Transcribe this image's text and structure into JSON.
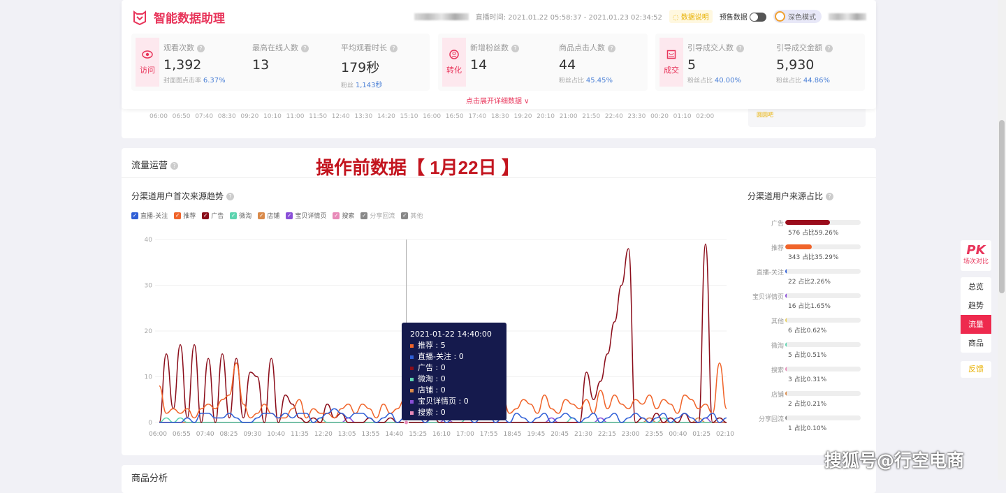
{
  "header": {
    "app_title": "智能数据助理",
    "live_time": "直播时间: 2021.01.22 05:58:37 - 2021.01.23 02:34:52",
    "data_note": "数据说明",
    "presale_label": "预售数据",
    "dark_mode_label": "深色模式",
    "expand_label": "点击展开详细数据 ∨"
  },
  "groups": [
    {
      "label": "访问",
      "icon": "eye-icon",
      "metrics": [
        {
          "label": "观看次数",
          "value": "1,392",
          "sub_label": "封面图点击率",
          "sub_value": "6.37%"
        },
        {
          "label": "最高在线人数",
          "value": "13",
          "sub_label": "",
          "sub_value": ""
        },
        {
          "label": "平均观看时长",
          "value": "179秒",
          "sub_label": "粉丝",
          "sub_value": "1,143秒"
        }
      ]
    },
    {
      "label": "转化",
      "icon": "user-icon",
      "metrics": [
        {
          "label": "新增粉丝数",
          "value": "14",
          "sub_label": "",
          "sub_value": ""
        },
        {
          "label": "商品点击人数",
          "value": "44",
          "sub_label": "粉丝占比",
          "sub_value": "45.45%"
        }
      ]
    },
    {
      "label": "成交",
      "icon": "bag-icon",
      "metrics": [
        {
          "label": "引导成交人数",
          "value": "5",
          "sub_label": "粉丝占比",
          "sub_value": "40.00%"
        },
        {
          "label": "引导成交金额",
          "value": "5,930",
          "sub_label": "粉丝占比",
          "sub_value": "44.86%"
        }
      ]
    }
  ],
  "prev_axis": [
    "06:00",
    "06:50",
    "07:40",
    "08:30",
    "09:20",
    "10:10",
    "11:00",
    "11:50",
    "12:40",
    "13:30",
    "14:20",
    "15:10",
    "16:00",
    "16:50",
    "17:40",
    "18:30",
    "19:20",
    "20:10",
    "21:00",
    "21:50",
    "22:40",
    "23:30",
    "00:20",
    "01:10",
    "02:00"
  ],
  "prev_box_text": "圆圆吧",
  "traffic": {
    "title": "流量运营",
    "banner": "操作前数据【 1月22日 】",
    "chart_title": "分渠道用户首次来源趋势",
    "share_title": "分渠道用户来源占比"
  },
  "chart_data": {
    "type": "line",
    "ylim": [
      0,
      40
    ],
    "yticks": [
      0,
      10,
      20,
      30,
      40
    ],
    "grid": true,
    "legend_placement": "top-left",
    "x_start": "06:00",
    "x_step_minutes": 15,
    "xticks": [
      "06:00",
      "06:55",
      "07:40",
      "08:25",
      "09:30",
      "10:40",
      "11:35",
      "12:20",
      "13:05",
      "13:55",
      "14:40",
      "15:25",
      "16:10",
      "17:00",
      "17:55",
      "18:45",
      "19:45",
      "20:45",
      "21:30",
      "22:15",
      "23:00",
      "23:55",
      "00:40",
      "01:25",
      "02:10"
    ],
    "series": [
      {
        "name": "直播-关注",
        "color": "#2f5fd6",
        "values": [
          0,
          0,
          0,
          0,
          1,
          0,
          2,
          2,
          1,
          1,
          2,
          1,
          0,
          0,
          1,
          2,
          2,
          1,
          2,
          1,
          2,
          2,
          0,
          1,
          2,
          3,
          2,
          1,
          2,
          2,
          1,
          0,
          1,
          2,
          0,
          1,
          2,
          1,
          0,
          1,
          2,
          0,
          1,
          2,
          1,
          0,
          1,
          2,
          0,
          1,
          0,
          2,
          1,
          0,
          1,
          2,
          0,
          1,
          2,
          1,
          0,
          1,
          2,
          0,
          1,
          2,
          0,
          1,
          2,
          1,
          0,
          1,
          2,
          0,
          1,
          2,
          1,
          0,
          1,
          2,
          0,
          1
        ]
      },
      {
        "name": "推荐",
        "color": "#f0642a",
        "values": [
          8,
          2,
          3,
          2,
          3,
          1,
          3,
          4,
          3,
          5,
          6,
          13,
          4,
          1,
          2,
          4,
          2,
          1,
          1,
          3,
          5,
          1,
          3,
          2,
          2,
          1,
          3,
          4,
          2,
          4,
          3,
          1,
          4,
          2,
          3,
          5,
          4,
          2,
          3,
          1,
          2,
          3,
          2,
          5,
          3,
          1,
          2,
          4,
          3,
          6,
          2,
          3,
          5,
          4,
          2,
          6,
          3,
          2,
          5,
          4,
          3,
          5,
          2,
          7,
          3,
          6,
          4,
          3,
          5,
          4,
          6,
          3,
          5,
          4,
          2,
          6,
          5,
          3,
          4,
          2,
          13,
          3
        ]
      },
      {
        "name": "广告",
        "color": "#8b0d1a",
        "values": [
          0,
          15,
          3,
          17,
          1,
          17,
          0,
          14,
          0,
          15,
          1,
          14,
          1,
          11,
          10,
          0,
          14,
          0,
          6,
          4,
          1,
          0,
          1,
          0,
          4,
          1,
          2,
          0,
          0,
          0,
          1,
          0,
          0,
          1,
          0,
          0,
          0,
          0,
          0,
          2,
          0,
          0,
          0,
          0,
          0,
          0,
          0,
          0,
          0,
          0,
          0,
          0,
          0,
          0,
          0,
          0,
          0,
          0,
          0,
          0,
          0,
          11,
          5,
          9,
          15,
          22,
          30,
          38,
          0,
          1,
          0,
          2,
          0,
          1,
          0,
          2,
          0,
          0,
          39,
          0,
          1,
          0
        ]
      },
      {
        "name": "微淘",
        "color": "#5dd4b0",
        "values": [
          0,
          1,
          0,
          1,
          0,
          0,
          0,
          0,
          0,
          0,
          0,
          0,
          0,
          0,
          0,
          0,
          0,
          0,
          0,
          0,
          0,
          0,
          0,
          1,
          0,
          0,
          0,
          0,
          0,
          0,
          0,
          0,
          0,
          0,
          0,
          0,
          0,
          0,
          0,
          0,
          0,
          0,
          0,
          0,
          1,
          0,
          0,
          0,
          0,
          0,
          0,
          0,
          0,
          0,
          0,
          0,
          0,
          0,
          0,
          1,
          0,
          0,
          0,
          0,
          0,
          0,
          0,
          0,
          0,
          0,
          0,
          0,
          1,
          0,
          0,
          0,
          0,
          0,
          0,
          0,
          1,
          0
        ]
      },
      {
        "name": "店铺",
        "color": "#d98a4a",
        "values": [
          0,
          0,
          0,
          0,
          0,
          0,
          0,
          0,
          0,
          0,
          0,
          0,
          0,
          0,
          0,
          0,
          0,
          0,
          0,
          0,
          0,
          0,
          0,
          0,
          0,
          0,
          0,
          0,
          0,
          0,
          0,
          0,
          0,
          0,
          0,
          0,
          0,
          0,
          0,
          0,
          0,
          0,
          0,
          0,
          0,
          0,
          0,
          0,
          0,
          0,
          0,
          0,
          0,
          0,
          0,
          0,
          0,
          0,
          0,
          0,
          0,
          0,
          0,
          0,
          0,
          0,
          0,
          0,
          0,
          0,
          1,
          0,
          0,
          0,
          0,
          0,
          0,
          1,
          0,
          0,
          0,
          0
        ]
      },
      {
        "name": "宝贝详情页",
        "color": "#8a4fd8",
        "values": [
          0,
          0,
          0,
          0,
          0,
          0,
          0,
          0,
          0,
          0,
          0,
          0,
          0,
          0,
          0,
          0,
          0,
          0,
          0,
          0,
          0,
          0,
          0,
          0,
          0,
          0,
          0,
          1,
          0,
          0,
          0,
          0,
          0,
          0,
          0,
          0,
          0,
          0,
          0,
          0,
          0,
          1,
          0,
          0,
          0,
          0,
          0,
          0,
          0,
          1,
          0,
          0,
          0,
          0,
          0,
          0,
          1,
          0,
          0,
          0,
          0,
          0,
          0,
          1,
          0,
          0,
          0,
          0,
          0,
          0,
          1,
          0,
          0,
          1,
          0,
          0,
          0,
          0,
          1,
          0,
          0,
          0
        ]
      },
      {
        "name": "搜索",
        "color": "#e88ab8",
        "values": [
          0,
          0,
          0,
          0,
          0,
          0,
          0,
          0,
          0,
          0,
          0,
          0,
          0,
          0,
          0,
          0,
          0,
          0,
          0,
          0,
          0,
          0,
          0,
          0,
          0,
          0,
          0,
          0,
          0,
          0,
          0,
          0,
          0,
          0,
          0,
          0,
          0,
          0,
          0,
          0,
          0,
          0,
          0,
          0,
          0,
          0,
          0,
          0,
          0,
          0,
          0,
          0,
          0,
          0,
          0,
          0,
          0,
          0,
          0,
          0,
          0,
          0,
          0,
          0,
          0,
          0,
          0,
          0,
          0,
          0,
          0,
          0,
          0,
          0,
          0,
          0,
          0,
          0,
          0,
          0,
          0,
          0
        ]
      },
      {
        "name": "分享回流",
        "color": "#888888",
        "values": []
      },
      {
        "name": "其他",
        "color": "#888888",
        "values": []
      }
    ],
    "tooltip": {
      "time": "2021-01-22 14:40:00",
      "x_value": "14:40",
      "rows": [
        {
          "name": "推荐",
          "value": "5",
          "color": "#f0642a"
        },
        {
          "name": "直播-关注",
          "value": "0",
          "color": "#2f5fd6"
        },
        {
          "name": "广告",
          "value": "0",
          "color": "#8b0d1a"
        },
        {
          "name": "微淘",
          "value": "0",
          "color": "#5dd4b0"
        },
        {
          "name": "店铺",
          "value": "0",
          "color": "#d98a4a"
        },
        {
          "name": "宝贝详情页",
          "value": "0",
          "color": "#8a4fd8"
        },
        {
          "name": "搜索",
          "value": "0",
          "color": "#e88ab8"
        }
      ]
    }
  },
  "share": [
    {
      "name": "广告",
      "count": "576",
      "pct_label": "占比59.26%",
      "pct": 59.26,
      "color": "#9a0c1c"
    },
    {
      "name": "推荐",
      "count": "343",
      "pct_label": "占比35.29%",
      "pct": 35.29,
      "color": "#f0642a"
    },
    {
      "name": "直播-关注",
      "count": "22",
      "pct_label": "占比2.26%",
      "pct": 2.26,
      "color": "#2f5fd6"
    },
    {
      "name": "宝贝详情页",
      "count": "16",
      "pct_label": "占比1.65%",
      "pct": 1.65,
      "color": "#8a4fd8"
    },
    {
      "name": "其他",
      "count": "6",
      "pct_label": "占比0.62%",
      "pct": 0.62,
      "color": "#e8d060"
    },
    {
      "name": "微淘",
      "count": "5",
      "pct_label": "占比0.51%",
      "pct": 0.51,
      "color": "#5dd4b0"
    },
    {
      "name": "搜索",
      "count": "3",
      "pct_label": "占比0.31%",
      "pct": 0.31,
      "color": "#e88ab8"
    },
    {
      "name": "店铺",
      "count": "2",
      "pct_label": "占比0.21%",
      "pct": 0.21,
      "color": "#d98a4a"
    },
    {
      "name": "分享回流",
      "count": "1",
      "pct_label": "占比0.10%",
      "pct": 0.1,
      "color": "#888888"
    }
  ],
  "product": {
    "title": "商品分析"
  },
  "side_nav": {
    "pk": "PK",
    "pk_sub": "场次对比",
    "items": [
      "总览",
      "趋势",
      "流量",
      "商品"
    ],
    "active": "流量",
    "feedback": "反馈"
  },
  "watermark": "搜狐号@行空电商"
}
